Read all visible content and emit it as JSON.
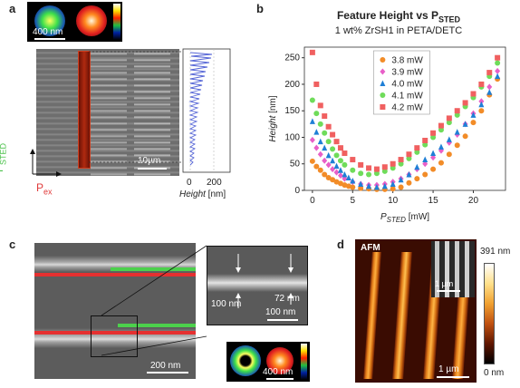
{
  "panels": {
    "a": {
      "label": "a",
      "psf_scalebar": "400 nm",
      "image_scalebar": "10µm",
      "axis_sted": "P",
      "axis_sted_sub": "STED",
      "axis_ex": "P",
      "axis_ex_sub": "ex",
      "profile_ticks": [
        "0",
        "200"
      ],
      "profile_xlabel": "Height",
      "profile_unit": " [nm]",
      "colors": {
        "sted": "#4cc24c",
        "ex": "#e03a3a",
        "profile": "#5565d6",
        "bar": "#a8260f"
      }
    },
    "b": {
      "label": "b",
      "title_main": "Feature Height vs P",
      "title_sub": "STED",
      "subtitle": "1 wt% ZrSH1 in PETA/DETC"
    },
    "c": {
      "label": "c",
      "inset_label_left": "100 nm",
      "inset_label_right": "72 nm",
      "inset_scalebar": "100 nm",
      "main_scalebar": "200 nm",
      "psf_scalebar": "400 nm",
      "colors": {
        "green": "#4cd14c",
        "red": "#e53030"
      }
    },
    "d": {
      "label": "d",
      "afm_label": "AFM",
      "inset_scalebar": "1 µm",
      "main_scalebar": "1 µm",
      "colorbar_max": "391 nm",
      "colorbar_min": "0 nm"
    }
  },
  "chart_data": {
    "type": "scatter",
    "title": "Feature Height vs PSTED",
    "subtitle": "1 wt% ZrSH1 in PETA/DETC",
    "xlabel": "PSTED [mW]",
    "ylabel": "Height [nm]",
    "xlim": [
      -1,
      24
    ],
    "ylim": [
      0,
      270
    ],
    "xticks": [
      0,
      5,
      10,
      15,
      20
    ],
    "yticks": [
      0,
      50,
      100,
      150,
      200,
      250
    ],
    "legend_position": "top-center",
    "series": [
      {
        "name": "3.8 mW",
        "color": "#f28c28",
        "marker": "circle",
        "x": [
          0,
          0.5,
          1,
          1.5,
          2,
          2.5,
          3,
          3.5,
          4,
          4.5,
          5,
          6,
          7,
          8,
          9,
          10,
          11,
          12,
          13,
          14,
          15,
          16,
          17,
          18,
          19,
          20,
          21,
          22,
          23
        ],
        "y": [
          55,
          45,
          38,
          30,
          24,
          20,
          16,
          13,
          10,
          8,
          6,
          4,
          3,
          2,
          2,
          3,
          6,
          14,
          22,
          30,
          40,
          52,
          68,
          85,
          102,
          128,
          150,
          180,
          210
        ]
      },
      {
        "name": "3.9 mW",
        "color": "#e85fc8",
        "marker": "diamond",
        "x": [
          0,
          0.5,
          1,
          1.5,
          2,
          2.5,
          3,
          3.5,
          4,
          5,
          6,
          7,
          8,
          9,
          10,
          11,
          12,
          13,
          14,
          15,
          16,
          17,
          18,
          19,
          20,
          21,
          22,
          23
        ],
        "y": [
          95,
          80,
          68,
          56,
          48,
          40,
          34,
          28,
          22,
          16,
          12,
          10,
          10,
          12,
          16,
          22,
          30,
          40,
          50,
          62,
          75,
          90,
          105,
          125,
          145,
          168,
          195,
          225
        ]
      },
      {
        "name": "4.0 mW",
        "color": "#1f7fd6",
        "marker": "triangle",
        "x": [
          0,
          0.5,
          1,
          1.5,
          2,
          2.5,
          3,
          3.5,
          4,
          4.5,
          5,
          6,
          7,
          8,
          9,
          10,
          11,
          12,
          13,
          14,
          15,
          16,
          17,
          18,
          19,
          20,
          21,
          22,
          23
        ],
        "y": [
          130,
          110,
          92,
          80,
          66,
          56,
          46,
          38,
          30,
          24,
          18,
          12,
          8,
          6,
          8,
          12,
          20,
          30,
          44,
          58,
          70,
          82,
          96,
          110,
          125,
          142,
          162,
          185,
          215
        ]
      },
      {
        "name": "4.1 mW",
        "color": "#6fdc5a",
        "marker": "circle",
        "x": [
          0,
          0.5,
          1,
          1.5,
          2,
          2.5,
          3,
          3.5,
          4,
          5,
          6,
          7,
          8,
          9,
          10,
          11,
          12,
          13,
          14,
          15,
          16,
          17,
          18,
          19,
          20,
          21,
          22,
          23
        ],
        "y": [
          170,
          145,
          125,
          108,
          92,
          78,
          66,
          56,
          48,
          38,
          32,
          30,
          32,
          36,
          42,
          50,
          60,
          72,
          86,
          100,
          114,
          128,
          142,
          158,
          175,
          195,
          215,
          240
        ]
      },
      {
        "name": "4.2 mW",
        "color": "#f06060",
        "marker": "square",
        "x": [
          0,
          0.5,
          1,
          1.5,
          2,
          2.5,
          3,
          3.5,
          4,
          5,
          6,
          7,
          8,
          9,
          10,
          11,
          12,
          13,
          14,
          15,
          16,
          17,
          18,
          19,
          20,
          21,
          22,
          23
        ],
        "y": [
          260,
          200,
          160,
          140,
          120,
          105,
          92,
          80,
          70,
          58,
          48,
          42,
          40,
          44,
          50,
          58,
          68,
          80,
          94,
          108,
          122,
          136,
          150,
          165,
          182,
          200,
          222,
          250
        ]
      }
    ]
  }
}
